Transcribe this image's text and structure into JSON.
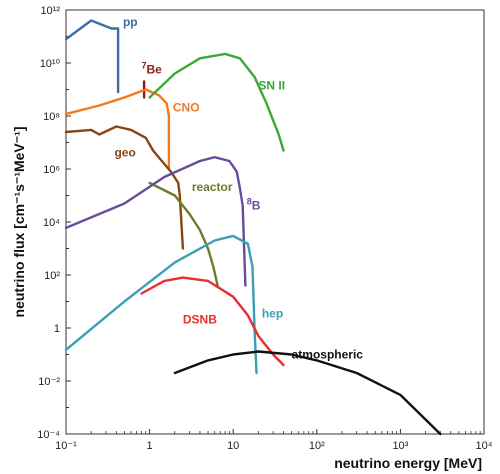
{
  "chart_data": {
    "type": "line",
    "title": "",
    "xlabel": "neutrino energy [MeV]",
    "ylabel": "neutrino flux [cm⁻¹s⁻¹MeV⁻¹]",
    "x_scale": "log",
    "y_scale": "log",
    "xlim": [
      0.1,
      10000
    ],
    "ylim": [
      0.0001,
      1000000000000
    ],
    "x_tick_labels": [
      "10⁻¹",
      "1",
      "10",
      "10²",
      "10³",
      "10⁴"
    ],
    "y_tick_labels": [
      "10¹²",
      "10¹⁰",
      "10⁸",
      "10⁶",
      "10⁴",
      "10²",
      "1",
      "10⁻²",
      "10⁻⁴"
    ],
    "grid": false,
    "series": [
      {
        "name": "pp",
        "color": "#3a6ea5",
        "points": [
          [
            0.1,
            80000000000.0
          ],
          [
            0.2,
            400000000000.0
          ],
          [
            0.35,
            200000000000.0
          ],
          [
            0.42,
            200000000000.0
          ],
          [
            0.42,
            800000000.0
          ]
        ]
      },
      {
        "name": "7Be",
        "color": "#8b1a1a",
        "points": [
          [
            0.86,
            500000000.0
          ],
          [
            0.86,
            2000000000.0
          ]
        ]
      },
      {
        "name": "CNO",
        "color": "#f07a20",
        "points": [
          [
            0.1,
            120000000.0
          ],
          [
            0.25,
            250000000.0
          ],
          [
            0.5,
            500000000.0
          ],
          [
            0.9,
            1000000000.0
          ],
          [
            1.3,
            600000000.0
          ],
          [
            1.6,
            300000000.0
          ],
          [
            1.7,
            100000000.0
          ],
          [
            1.7,
            1000000.0
          ]
        ]
      },
      {
        "name": "geo",
        "color": "#8b4513",
        "points": [
          [
            0.1,
            25000000.0
          ],
          [
            0.2,
            30000000.0
          ],
          [
            0.25,
            20000000.0
          ],
          [
            0.4,
            40000000.0
          ],
          [
            0.6,
            30000000.0
          ],
          [
            0.9,
            15000000.0
          ],
          [
            1.1,
            5000000.0
          ],
          [
            1.4,
            2000000.0
          ],
          [
            1.8,
            800000.0
          ],
          [
            2.2,
            300000.0
          ],
          [
            2.3,
            100000.0
          ],
          [
            2.5,
            1000.0
          ]
        ]
      },
      {
        "name": "reactor",
        "color": "#6b7d2a",
        "points": [
          [
            1.0,
            300000.0
          ],
          [
            2.0,
            100000.0
          ],
          [
            3.0,
            20000.0
          ],
          [
            4.0,
            5000.0
          ],
          [
            5.0,
            1000.0
          ],
          [
            5.8,
            200.0
          ],
          [
            6.5,
            40
          ]
        ]
      },
      {
        "name": "8B",
        "color": "#6a4c9c",
        "points": [
          [
            0.1,
            6000.0
          ],
          [
            0.5,
            50000.0
          ],
          [
            1.5,
            500000.0
          ],
          [
            4.0,
            2000000.0
          ],
          [
            6.0,
            2800000.0
          ],
          [
            9.0,
            2000000.0
          ],
          [
            11.0,
            800000.0
          ],
          [
            12.0,
            200000.0
          ],
          [
            13.0,
            40000.0
          ],
          [
            14.0,
            40
          ]
        ]
      },
      {
        "name": "SN II",
        "color": "#3aaa35",
        "points": [
          [
            1.0,
            500000000.0
          ],
          [
            2.0,
            4000000000.0
          ],
          [
            4.0,
            15000000000.0
          ],
          [
            8.0,
            22000000000.0
          ],
          [
            12.0,
            15000000000.0
          ],
          [
            18.0,
            3000000000.0
          ],
          [
            25.0,
            300000000.0
          ],
          [
            35.0,
            20000000.0
          ],
          [
            40.0,
            5000000.0
          ]
        ]
      },
      {
        "name": "hep",
        "color": "#3a9eb5",
        "points": [
          [
            0.1,
            0.15
          ],
          [
            0.5,
            10
          ],
          [
            2.0,
            300
          ],
          [
            6.0,
            2000
          ],
          [
            10.0,
            3000
          ],
          [
            15.0,
            1500
          ],
          [
            17.0,
            200
          ],
          [
            18.0,
            1
          ],
          [
            19.0,
            0.02
          ]
        ]
      },
      {
        "name": "DSNB",
        "color": "#e63030",
        "points": [
          [
            0.8,
            20
          ],
          [
            1.5,
            60
          ],
          [
            2.5,
            80
          ],
          [
            5.0,
            60
          ],
          [
            10.0,
            15
          ],
          [
            15.0,
            3
          ],
          [
            20.0,
            0.5
          ],
          [
            30.0,
            0.1
          ],
          [
            40.0,
            0.04
          ]
        ]
      },
      {
        "name": "atmospheric",
        "color": "#111111",
        "points": [
          [
            2.0,
            0.02
          ],
          [
            5.0,
            0.06
          ],
          [
            10.0,
            0.1
          ],
          [
            20.0,
            0.13
          ],
          [
            50.0,
            0.1
          ],
          [
            100.0,
            0.06
          ],
          [
            300.0,
            0.02
          ],
          [
            1000.0,
            0.003
          ],
          [
            3000.0,
            0.0001
          ]
        ]
      }
    ]
  }
}
